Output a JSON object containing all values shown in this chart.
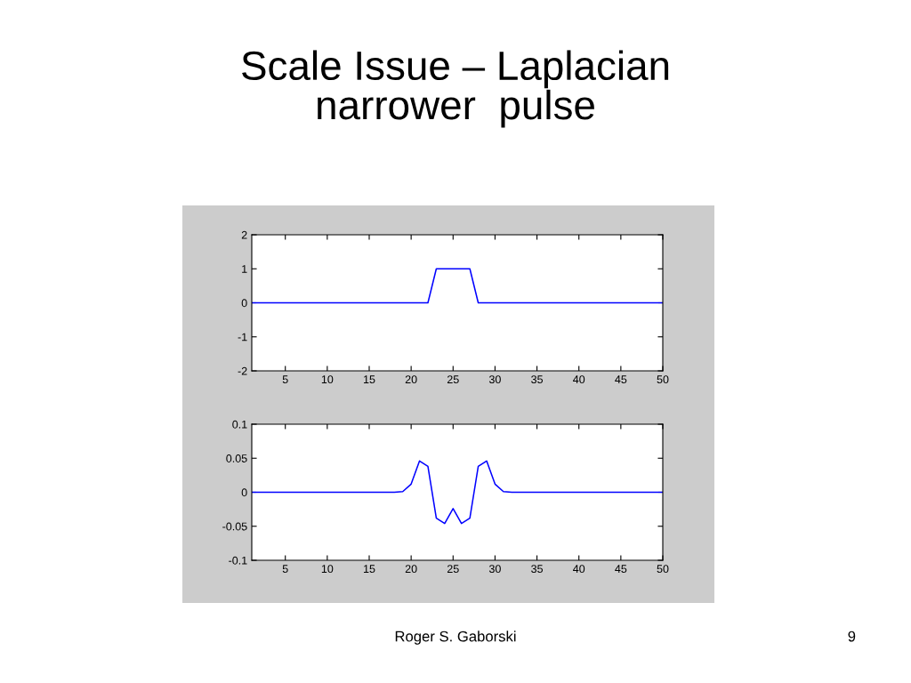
{
  "chart_data": [
    {
      "type": "line",
      "title": "Scale Issue – Laplacian\nnarrower  pulse",
      "x": [
        1,
        22,
        23,
        27,
        28,
        50
      ],
      "series": [
        {
          "color": "#0000ff",
          "values": [
            0,
            0,
            1,
            1,
            0,
            0
          ]
        }
      ],
      "xlim": [
        1,
        50
      ],
      "xticks": [
        5,
        10,
        15,
        20,
        25,
        30,
        35,
        40,
        45,
        50
      ],
      "ylim": [
        -2,
        2
      ],
      "yticks": [
        -2,
        -1,
        0,
        1,
        2
      ],
      "grid": false
    },
    {
      "type": "line",
      "x": [
        1,
        18,
        19,
        20,
        21,
        22,
        23,
        24,
        25,
        26,
        27,
        28,
        29,
        30,
        31,
        32,
        50
      ],
      "series": [
        {
          "color": "#0000ff",
          "values": [
            0,
            0,
            0.001,
            0.012,
            0.046,
            0.038,
            -0.038,
            -0.046,
            -0.024,
            -0.046,
            -0.038,
            0.038,
            0.046,
            0.012,
            0.001,
            0,
            0
          ]
        }
      ],
      "xlim": [
        1,
        50
      ],
      "xticks": [
        5,
        10,
        15,
        20,
        25,
        30,
        35,
        40,
        45,
        50
      ],
      "ylim": [
        -0.1,
        0.1
      ],
      "yticks": [
        -0.1,
        -0.05,
        0,
        0.05,
        0.1
      ],
      "grid": false,
      "annotations": [
        "Roger S. Gaborski",
        "9"
      ]
    }
  ]
}
